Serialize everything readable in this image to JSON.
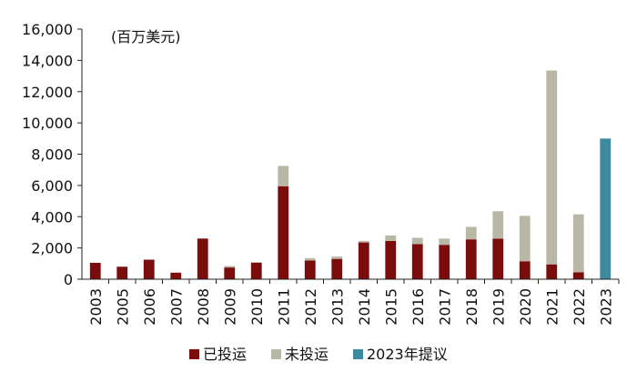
{
  "chart_data": {
    "type": "bar",
    "stacked": true,
    "unit_note": "(百万美元)",
    "categories": [
      "2003",
      "2005",
      "2006",
      "2007",
      "2008",
      "2009",
      "2010",
      "2011",
      "2012",
      "2013",
      "2014",
      "2015",
      "2016",
      "2017",
      "2018",
      "2019",
      "2020",
      "2021",
      "2022",
      "2023"
    ],
    "series": [
      {
        "name": "已投运",
        "color": "#7b0c0c",
        "values": [
          1050,
          800,
          1250,
          420,
          2600,
          750,
          1050,
          5950,
          1200,
          1300,
          2350,
          2450,
          2250,
          2200,
          2550,
          2600,
          1150,
          950,
          450,
          0
        ]
      },
      {
        "name": "未投运",
        "color": "#b9b8a6",
        "values": [
          0,
          0,
          0,
          0,
          0,
          100,
          50,
          1300,
          150,
          150,
          100,
          350,
          400,
          400,
          800,
          1750,
          2900,
          12400,
          3700,
          0
        ]
      },
      {
        "name": "2023年提议",
        "color": "#3d8aa0",
        "values": [
          0,
          0,
          0,
          0,
          0,
          0,
          0,
          0,
          0,
          0,
          0,
          0,
          0,
          0,
          0,
          0,
          0,
          0,
          0,
          9000
        ]
      }
    ],
    "ylim": [
      0,
      16000
    ],
    "yticks": [
      0,
      2000,
      4000,
      6000,
      8000,
      10000,
      12000,
      14000,
      16000
    ],
    "ytick_labels": [
      "0",
      "2,000",
      "4,000",
      "6,000",
      "8,000",
      "10,000",
      "12,000",
      "14,000",
      "16,000"
    ],
    "grid": false,
    "legend_position": "bottom"
  }
}
